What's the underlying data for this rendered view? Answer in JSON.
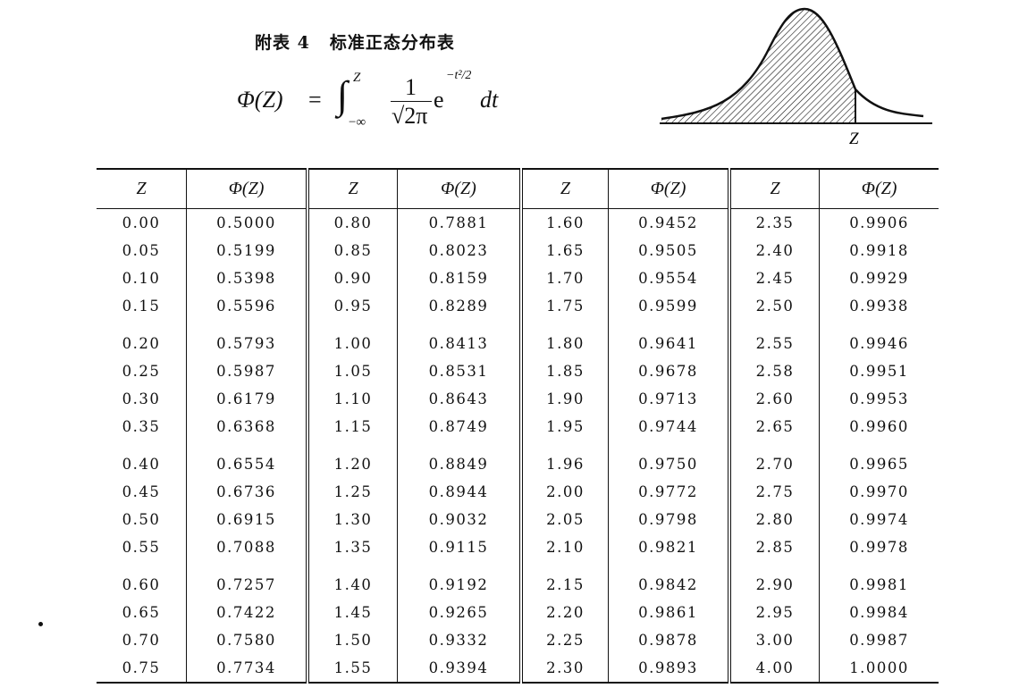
{
  "title": {
    "number": "附表 4",
    "name": "标准正态分布表"
  },
  "formula": {
    "lhs": "Φ(Z)",
    "eq": "=",
    "upper": "Z",
    "lower": "−∞",
    "numerator": "1",
    "denominator": "√2π",
    "exp_base": "e",
    "exp": "−t²/2",
    "dt": "dt"
  },
  "figure": {
    "z_label": "Z"
  },
  "table": {
    "headers": [
      "Z",
      "Φ(Z)",
      "Z",
      "Φ(Z)",
      "Z",
      "Φ(Z)",
      "Z",
      "Φ(Z)"
    ],
    "groups": [
      {
        "z": [
          "0.00",
          "0.05",
          "0.10",
          "0.15",
          "0.20",
          "0.25",
          "0.30",
          "0.35",
          "0.40",
          "0.45",
          "0.50",
          "0.55",
          "0.60",
          "0.65",
          "0.70",
          "0.75"
        ],
        "phi": [
          "0.5000",
          "0.5199",
          "0.5398",
          "0.5596",
          "0.5793",
          "0.5987",
          "0.6179",
          "0.6368",
          "0.6554",
          "0.6736",
          "0.6915",
          "0.7088",
          "0.7257",
          "0.7422",
          "0.7580",
          "0.7734"
        ]
      },
      {
        "z": [
          "0.80",
          "0.85",
          "0.90",
          "0.95",
          "1.00",
          "1.05",
          "1.10",
          "1.15",
          "1.20",
          "1.25",
          "1.30",
          "1.35",
          "1.40",
          "1.45",
          "1.50",
          "1.55"
        ],
        "phi": [
          "0.7881",
          "0.8023",
          "0.8159",
          "0.8289",
          "0.8413",
          "0.8531",
          "0.8643",
          "0.8749",
          "0.8849",
          "0.8944",
          "0.9032",
          "0.9115",
          "0.9192",
          "0.9265",
          "0.9332",
          "0.9394"
        ]
      },
      {
        "z": [
          "1.60",
          "1.65",
          "1.70",
          "1.75",
          "1.80",
          "1.85",
          "1.90",
          "1.95",
          "1.96",
          "2.00",
          "2.05",
          "2.10",
          "2.15",
          "2.20",
          "2.25",
          "2.30"
        ],
        "phi": [
          "0.9452",
          "0.9505",
          "0.9554",
          "0.9599",
          "0.9641",
          "0.9678",
          "0.9713",
          "0.9744",
          "0.9750",
          "0.9772",
          "0.9798",
          "0.9821",
          "0.9842",
          "0.9861",
          "0.9878",
          "0.9893"
        ]
      },
      {
        "z": [
          "2.35",
          "2.40",
          "2.45",
          "2.50",
          "2.55",
          "2.58",
          "2.60",
          "2.65",
          "2.70",
          "2.75",
          "2.80",
          "2.85",
          "2.90",
          "2.95",
          "3.00",
          "4.00"
        ],
        "phi": [
          "0.9906",
          "0.9918",
          "0.9929",
          "0.9938",
          "0.9946",
          "0.9951",
          "0.9953",
          "0.9960",
          "0.9965",
          "0.9970",
          "0.9974",
          "0.9978",
          "0.9981",
          "0.9984",
          "0.9987",
          "1.0000"
        ]
      }
    ]
  }
}
